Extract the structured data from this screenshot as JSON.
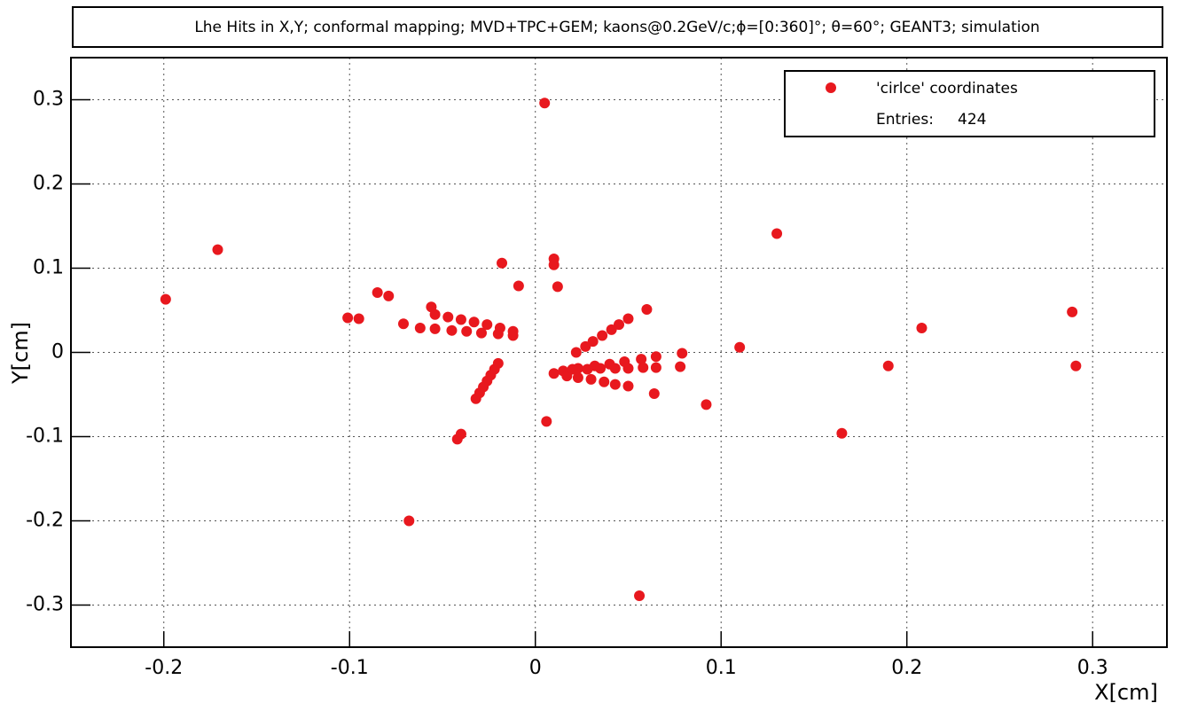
{
  "chart_data": {
    "type": "scatter",
    "title": "Lhe Hits in X,Y; conformal mapping; MVD+TPC+GEM; kaons@0.2GeV/c;ϕ=[0:360]°; θ=60°; GEANT3; simulation",
    "x_label": "X[cm]",
    "y_label": "Y[cm]",
    "xlim": [
      -0.25,
      0.34
    ],
    "ylim": [
      -0.35,
      0.35
    ],
    "xticks": [
      -0.2,
      -0.1,
      0,
      0.1,
      0.2,
      0.3
    ],
    "yticks": [
      -0.3,
      -0.2,
      -0.1,
      0,
      0.1,
      0.2,
      0.3
    ],
    "grid": true,
    "legend": {
      "position": "upper-right",
      "label": "'cirlce' coordinates",
      "entries_label": "Entries:",
      "entries": 424
    },
    "series": [
      {
        "name": "'cirlce' coordinates",
        "color": "#e8181e",
        "x": [
          -0.199,
          -0.171,
          -0.101,
          -0.095,
          -0.085,
          -0.079,
          -0.071,
          -0.056,
          -0.018,
          -0.009,
          0.005,
          0.01,
          0.01,
          0.012,
          0.06,
          0.079,
          0.078,
          0.064,
          0.092,
          0.11,
          0.13,
          0.19,
          0.208,
          0.289,
          0.291,
          0.165,
          0.006,
          -0.04,
          -0.042,
          -0.068,
          0.056,
          -0.054,
          -0.047,
          -0.04,
          -0.033,
          -0.026,
          -0.019,
          -0.012,
          -0.062,
          -0.054,
          -0.045,
          -0.037,
          -0.029,
          -0.02,
          -0.012,
          -0.02,
          -0.022,
          -0.024,
          -0.026,
          -0.028,
          -0.03,
          -0.032,
          0.022,
          0.027,
          0.031,
          0.036,
          0.041,
          0.045,
          0.05,
          0.015,
          0.023,
          0.032,
          0.04,
          0.048,
          0.057,
          0.065,
          0.01,
          0.017,
          0.023,
          0.03,
          0.037,
          0.043,
          0.05,
          0.02,
          0.028,
          0.035,
          0.043,
          0.05,
          0.058,
          0.065
        ],
        "y": [
          0.063,
          0.122,
          0.041,
          0.04,
          0.071,
          0.067,
          0.034,
          0.054,
          0.106,
          0.079,
          0.296,
          0.111,
          0.104,
          0.078,
          0.051,
          -0.001,
          -0.017,
          -0.049,
          -0.062,
          0.006,
          0.141,
          -0.016,
          0.029,
          0.048,
          -0.016,
          -0.096,
          -0.082,
          -0.097,
          -0.103,
          -0.2,
          -0.289,
          0.045,
          0.042,
          0.039,
          0.036,
          0.033,
          0.029,
          0.025,
          0.029,
          0.028,
          0.026,
          0.025,
          0.023,
          0.022,
          0.02,
          -0.013,
          -0.02,
          -0.027,
          -0.034,
          -0.041,
          -0.048,
          -0.055,
          0.0,
          0.007,
          0.013,
          0.02,
          0.027,
          0.033,
          0.04,
          -0.022,
          -0.019,
          -0.016,
          -0.014,
          -0.011,
          -0.008,
          -0.005,
          -0.025,
          -0.028,
          -0.03,
          -0.032,
          -0.035,
          -0.038,
          -0.04,
          -0.02,
          -0.02,
          -0.019,
          -0.019,
          -0.019,
          -0.018,
          -0.018
        ]
      }
    ]
  }
}
